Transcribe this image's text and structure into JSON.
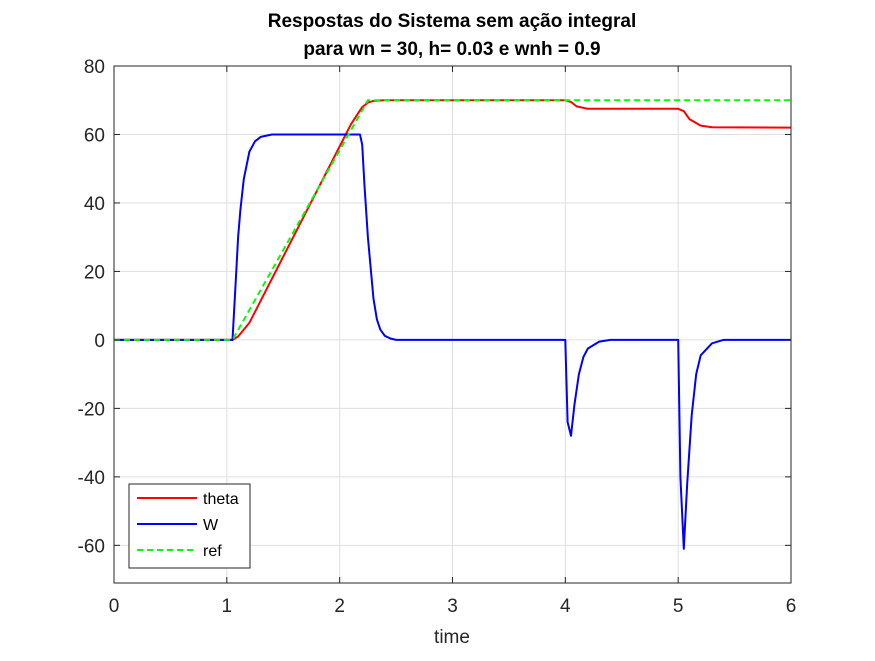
{
  "chart_data": {
    "type": "line",
    "title": [
      "Respostas do Sistema sem ação integral",
      "para wn = 30, h= 0.03 e wnh = 0.9"
    ],
    "xlabel": "time",
    "ylabel": "",
    "xlim": [
      0,
      6
    ],
    "ylim": [
      -71,
      80
    ],
    "xticks": [
      0,
      1,
      2,
      3,
      4,
      5,
      6
    ],
    "yticks": [
      -60,
      -40,
      -20,
      0,
      20,
      40,
      60,
      80
    ],
    "grid": true,
    "legend_position": "bottom-left",
    "series": [
      {
        "name": "theta",
        "color": "#ff0000",
        "style": "solid",
        "x": [
          0,
          1.05,
          1.1,
          1.15,
          1.2,
          2.1,
          2.2,
          2.25,
          2.3,
          2.4,
          4.0,
          4.05,
          4.1,
          4.2,
          5.0,
          5.05,
          5.1,
          5.2,
          5.3,
          6.0
        ],
        "y": [
          0,
          0,
          1,
          3,
          5,
          63,
          68,
          69.3,
          69.8,
          70,
          70,
          69.5,
          68.2,
          67.5,
          67.5,
          66.8,
          64.5,
          62.6,
          62.1,
          62
        ]
      },
      {
        "name": "W",
        "color": "#0000ff",
        "style": "solid",
        "x": [
          0,
          1.05,
          1.08,
          1.1,
          1.12,
          1.15,
          1.2,
          1.25,
          1.3,
          1.4,
          1.5,
          2.15,
          2.18,
          2.2,
          2.22,
          2.25,
          2.28,
          2.3,
          2.33,
          2.36,
          2.4,
          2.45,
          2.5,
          2.6,
          4.0,
          4.02,
          4.05,
          4.08,
          4.12,
          4.16,
          4.2,
          4.3,
          4.4,
          5.0,
          5.02,
          5.05,
          5.08,
          5.12,
          5.16,
          5.2,
          5.3,
          5.4,
          6.0
        ],
        "y": [
          0,
          0,
          18,
          30,
          38,
          47,
          55,
          58,
          59.3,
          60,
          60,
          60,
          60,
          57,
          45,
          30,
          19,
          12,
          6,
          3,
          1.2,
          0.4,
          0,
          0,
          0,
          -24,
          -28,
          -19,
          -10,
          -5,
          -2.5,
          -0.5,
          0,
          0,
          -40,
          -61,
          -42,
          -22,
          -10,
          -4.5,
          -1,
          0,
          0
        ]
      },
      {
        "name": "ref",
        "color": "#00ff00",
        "style": "dashed",
        "x": [
          0,
          1.05,
          2.25,
          6.0
        ],
        "y": [
          0,
          0,
          70,
          70
        ]
      }
    ]
  }
}
